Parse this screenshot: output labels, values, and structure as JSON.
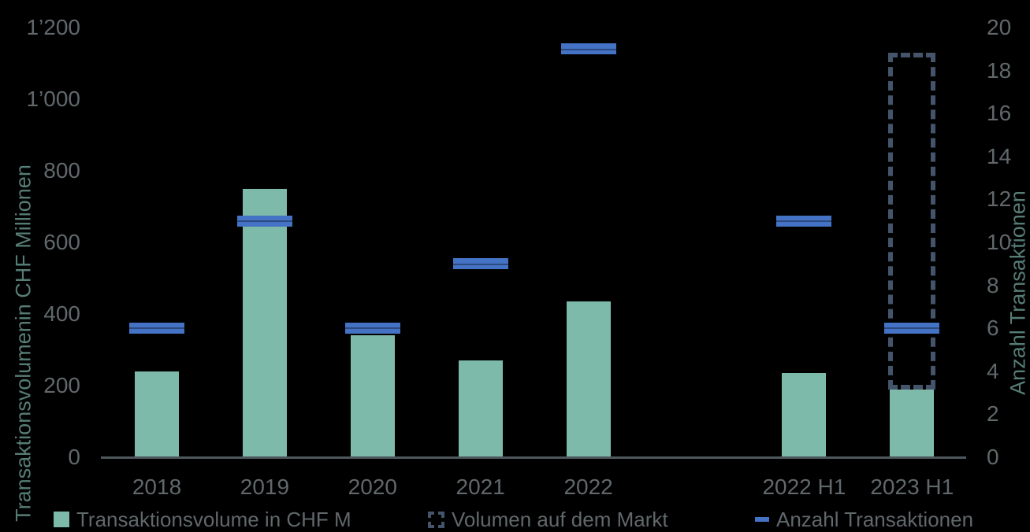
{
  "chart_data": {
    "type": "bar",
    "categories": [
      "2018",
      "2019",
      "2020",
      "2021",
      "2022",
      "",
      "2022 H1",
      "2023 H1"
    ],
    "series": [
      {
        "name": "Transaktionsvolume in CHF M",
        "type": "bar",
        "axis": "left",
        "color": "#7EBAAA",
        "values": [
          240,
          750,
          340,
          270,
          435,
          null,
          235,
          190
        ]
      },
      {
        "name": "Volumen auf dem Markt",
        "type": "range-bar-dashed",
        "axis": "left",
        "color": "#44546A",
        "ranges": [
          null,
          null,
          null,
          null,
          null,
          null,
          null,
          {
            "from": 190,
            "to": 1130
          }
        ]
      },
      {
        "name": "Anzahl Transaktionen",
        "type": "dash-marker",
        "axis": "right",
        "color": "#4472C4",
        "values": [
          6,
          11,
          6,
          9,
          19,
          null,
          11,
          6
        ]
      }
    ],
    "left_axis": {
      "title": "Transaktionsvolumenin CHF Millionen",
      "min": 0,
      "max": 1200,
      "step": 200,
      "tick_labels": [
        "0",
        "200",
        "400",
        "600",
        "800",
        "1’000",
        "1’200"
      ]
    },
    "right_axis": {
      "title": "Anzahl Transaktionen",
      "min": 0,
      "max": 20,
      "step": 2,
      "tick_labels": [
        "0",
        "2",
        "4",
        "6",
        "8",
        "10",
        "12",
        "14",
        "16",
        "18",
        "20"
      ]
    },
    "legend": [
      {
        "label": "Transaktionsvolume in CHF M",
        "swatch": "green-square"
      },
      {
        "label": "Volumen auf dem Markt",
        "swatch": "dashed-square"
      },
      {
        "label": "Anzahl Transaktionen",
        "swatch": "blue-dash"
      }
    ],
    "grid": false,
    "legend_position": "bottom",
    "background": "#000000"
  },
  "colors": {
    "background": "#000000",
    "bar_green": "#7EBAAA",
    "marker_blue": "#4472C4",
    "dashed_outline": "#44546A",
    "axis_line": "#4e585c",
    "tick_text": "#60686b",
    "axis_title_text": "#567D75"
  }
}
